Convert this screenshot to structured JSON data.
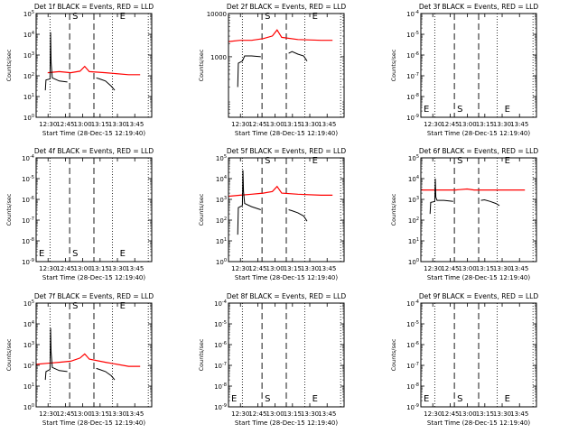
{
  "figure": {
    "x_time_labels": [
      "12:30",
      "12:45",
      "13:00",
      "13:15",
      "13:30",
      "13:45"
    ],
    "xlabel": "Start Time (28-Dec-15 12:19:40)",
    "ylabel": "Counts/sec",
    "colors": {
      "events": "#000000",
      "lld": "#ff0000",
      "axes": "#000000",
      "background": "#ffffff"
    },
    "marker_labels": {
      "start": "S",
      "end": "E"
    }
  },
  "chart_data": [
    {
      "type": "line",
      "id": "det1",
      "title": "Det 1f BLACK = Events, RED = LLD",
      "ylog": true,
      "y_exp_range": [
        0,
        5
      ],
      "yticks": [
        "10^0",
        "10^1",
        "10^2",
        "10^3",
        "10^4",
        "10^5"
      ],
      "xlim_minutes": [
        0,
        100
      ],
      "dotted_lines_min": [
        12,
        66,
        97
      ],
      "dashed_lines_min": [
        29,
        50
      ],
      "marker_positions": {
        "S": 29,
        "E": 70
      },
      "series": [
        {
          "color": "#ff0000",
          "points": [
            [
              10,
              2.15
            ],
            [
              20,
              2.2
            ],
            [
              30,
              2.15
            ],
            [
              38,
              2.22
            ],
            [
              42,
              2.45
            ],
            [
              46,
              2.2
            ],
            [
              60,
              2.15
            ],
            [
              80,
              2.05
            ],
            [
              90,
              2.05
            ]
          ]
        },
        {
          "color": "#000000",
          "points": [
            [
              8,
              1.3
            ],
            [
              8.5,
              1.8
            ],
            [
              12,
              1.85
            ],
            [
              12.5,
              4.1
            ],
            [
              13,
              2.6
            ],
            [
              14,
              1.9
            ],
            [
              20,
              1.75
            ],
            [
              27,
              1.7
            ]
          ]
        },
        {
          "color": "#000000",
          "points": [
            [
              52,
              1.9
            ],
            [
              55,
              1.85
            ],
            [
              60,
              1.75
            ],
            [
              65,
              1.5
            ],
            [
              68,
              1.3
            ]
          ]
        }
      ]
    },
    {
      "type": "line",
      "id": "det2",
      "title": "Det 2f BLACK = Events, RED = LLD",
      "ylog": true,
      "y_exp_range": [
        1.6,
        4
      ],
      "yticks": [
        "1000",
        "10000"
      ],
      "xlim_minutes": [
        0,
        100
      ],
      "dotted_lines_min": [
        12,
        66,
        97
      ],
      "dashed_lines_min": [
        29,
        50
      ],
      "marker_positions": {
        "S": 29,
        "E": 70
      },
      "series": [
        {
          "color": "#ff0000",
          "points": [
            [
              0,
              3.35
            ],
            [
              10,
              3.38
            ],
            [
              20,
              3.38
            ],
            [
              30,
              3.42
            ],
            [
              38,
              3.48
            ],
            [
              42,
              3.62
            ],
            [
              46,
              3.45
            ],
            [
              60,
              3.4
            ],
            [
              80,
              3.38
            ],
            [
              90,
              3.38
            ]
          ]
        },
        {
          "color": "#000000",
          "points": [
            [
              8,
              2.3
            ],
            [
              8.5,
              2.85
            ],
            [
              12,
              2.9
            ],
            [
              14,
              3.02
            ],
            [
              20,
              3.02
            ],
            [
              28,
              3.0
            ]
          ]
        },
        {
          "color": "#000000",
          "points": [
            [
              52,
              3.08
            ],
            [
              55,
              3.12
            ],
            [
              60,
              3.06
            ],
            [
              65,
              3.02
            ],
            [
              68,
              2.9
            ]
          ]
        }
      ]
    },
    {
      "type": "line",
      "id": "det3",
      "title": "Det 3f BLACK = Events, RED = LLD",
      "ylog": true,
      "y_exp_range": [
        -9,
        -4
      ],
      "yticks": [
        "10^-9",
        "10^-8",
        "10^-7",
        "10^-6",
        "10^-5",
        "10^-4"
      ],
      "xlim_minutes": [
        0,
        100
      ],
      "dotted_lines_min": [
        12,
        66,
        97
      ],
      "dashed_lines_min": [
        29,
        50
      ],
      "marker_positions": {
        "E0": 0,
        "S": 29,
        "E": 70
      },
      "series": []
    },
    {
      "type": "line",
      "id": "det4",
      "title": "Det 4f BLACK = Events, RED = LLD",
      "ylog": true,
      "y_exp_range": [
        -9,
        -4
      ],
      "yticks": [
        "10^-9",
        "10^-8",
        "10^-7",
        "10^-6",
        "10^-5",
        "10^-4"
      ],
      "xlim_minutes": [
        0,
        100
      ],
      "dotted_lines_min": [
        12,
        66,
        97
      ],
      "dashed_lines_min": [
        29,
        50
      ],
      "marker_positions": {
        "E0": 0,
        "S": 29,
        "E": 70
      },
      "series": []
    },
    {
      "type": "line",
      "id": "det5",
      "title": "Det 5f BLACK = Events, RED = LLD",
      "ylog": true,
      "y_exp_range": [
        0,
        5
      ],
      "yticks": [
        "10^0",
        "10^1",
        "10^2",
        "10^3",
        "10^4",
        "10^5"
      ],
      "xlim_minutes": [
        0,
        100
      ],
      "dotted_lines_min": [
        12,
        66,
        97
      ],
      "dashed_lines_min": [
        29,
        50
      ],
      "marker_positions": {
        "S": 29,
        "E": 70
      },
      "series": [
        {
          "color": "#ff0000",
          "points": [
            [
              0,
              3.15
            ],
            [
              10,
              3.2
            ],
            [
              20,
              3.25
            ],
            [
              30,
              3.3
            ],
            [
              38,
              3.38
            ],
            [
              42,
              3.62
            ],
            [
              46,
              3.3
            ],
            [
              60,
              3.25
            ],
            [
              80,
              3.2
            ],
            [
              90,
              3.2
            ]
          ]
        },
        {
          "color": "#000000",
          "points": [
            [
              8,
              1.3
            ],
            [
              8.5,
              2.6
            ],
            [
              12,
              2.7
            ],
            [
              12.5,
              4.4
            ],
            [
              13,
              3.4
            ],
            [
              14,
              2.8
            ],
            [
              20,
              2.65
            ],
            [
              28,
              2.5
            ]
          ]
        },
        {
          "color": "#000000",
          "points": [
            [
              52,
              2.5
            ],
            [
              55,
              2.45
            ],
            [
              60,
              2.35
            ],
            [
              65,
              2.2
            ],
            [
              68,
              1.95
            ]
          ]
        }
      ]
    },
    {
      "type": "line",
      "id": "det6",
      "title": "Det 6f BLACK = Events, RED = LLD",
      "ylog": true,
      "y_exp_range": [
        0,
        5
      ],
      "yticks": [
        "10^0",
        "10^1",
        "10^2",
        "10^3",
        "10^4",
        "10^5"
      ],
      "xlim_minutes": [
        0,
        100
      ],
      "dotted_lines_min": [
        12,
        66,
        97
      ],
      "dashed_lines_min": [
        29,
        50
      ],
      "marker_positions": {
        "S": 29,
        "E": 70
      },
      "series": [
        {
          "color": "#ff0000",
          "points": [
            [
              0,
              3.45
            ],
            [
              10,
              3.45
            ],
            [
              20,
              3.45
            ],
            [
              30,
              3.45
            ],
            [
              40,
              3.5
            ],
            [
              46,
              3.45
            ],
            [
              60,
              3.45
            ],
            [
              80,
              3.45
            ],
            [
              90,
              3.45
            ]
          ]
        },
        {
          "color": "#000000",
          "points": [
            [
              8,
              2.3
            ],
            [
              8.5,
              2.85
            ],
            [
              12,
              2.9
            ],
            [
              12.5,
              4.0
            ],
            [
              13,
              3.1
            ],
            [
              14,
              2.95
            ],
            [
              20,
              2.95
            ],
            [
              28,
              2.9
            ]
          ]
        },
        {
          "color": "#000000",
          "points": [
            [
              52,
              2.95
            ],
            [
              55,
              2.98
            ],
            [
              60,
              2.9
            ],
            [
              65,
              2.8
            ],
            [
              68,
              2.7
            ]
          ]
        }
      ]
    },
    {
      "type": "line",
      "id": "det7",
      "title": "Det 7f BLACK = Events, RED = LLD",
      "ylog": true,
      "y_exp_range": [
        0,
        5
      ],
      "yticks": [
        "10^0",
        "10^1",
        "10^2",
        "10^3",
        "10^4",
        "10^5"
      ],
      "xlim_minutes": [
        0,
        100
      ],
      "dotted_lines_min": [
        12,
        66,
        97
      ],
      "dashed_lines_min": [
        29,
        50
      ],
      "marker_positions": {
        "S": 29,
        "E": 70
      },
      "series": [
        {
          "color": "#ff0000",
          "points": [
            [
              0,
              2.05
            ],
            [
              10,
              2.1
            ],
            [
              20,
              2.15
            ],
            [
              30,
              2.2
            ],
            [
              38,
              2.35
            ],
            [
              42,
              2.55
            ],
            [
              46,
              2.3
            ],
            [
              60,
              2.15
            ],
            [
              80,
              1.95
            ],
            [
              90,
              1.95
            ]
          ]
        },
        {
          "color": "#000000",
          "points": [
            [
              8,
              1.3
            ],
            [
              8.5,
              1.7
            ],
            [
              12,
              1.8
            ],
            [
              12.5,
              3.8
            ],
            [
              13,
              2.6
            ],
            [
              14,
              1.9
            ],
            [
              20,
              1.75
            ],
            [
              27,
              1.7
            ]
          ]
        },
        {
          "color": "#000000",
          "points": [
            [
              52,
              1.85
            ],
            [
              55,
              1.8
            ],
            [
              60,
              1.7
            ],
            [
              65,
              1.5
            ],
            [
              68,
              1.3
            ]
          ]
        }
      ]
    },
    {
      "type": "line",
      "id": "det8",
      "title": "Det 8f BLACK = Events, RED = LLD",
      "ylog": true,
      "y_exp_range": [
        -9,
        -4
      ],
      "yticks": [
        "10^-9",
        "10^-8",
        "10^-7",
        "10^-6",
        "10^-5",
        "10^-4"
      ],
      "xlim_minutes": [
        0,
        100
      ],
      "dotted_lines_min": [
        12,
        66,
        97
      ],
      "dashed_lines_min": [
        29,
        50
      ],
      "marker_positions": {
        "E0": 0,
        "S": 29,
        "E": 70
      },
      "series": []
    },
    {
      "type": "line",
      "id": "det9",
      "title": "Det 9f BLACK = Events, RED = LLD",
      "ylog": true,
      "y_exp_range": [
        -9,
        -4
      ],
      "yticks": [
        "10^-9",
        "10^-8",
        "10^-7",
        "10^-6",
        "10^-5",
        "10^-4"
      ],
      "xlim_minutes": [
        0,
        100
      ],
      "dotted_lines_min": [
        12,
        66,
        97
      ],
      "dashed_lines_min": [
        29,
        50
      ],
      "marker_positions": {
        "E0": 0,
        "S": 29,
        "E": 70
      },
      "series": []
    }
  ]
}
